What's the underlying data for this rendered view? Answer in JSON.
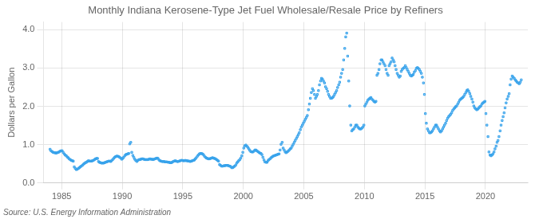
{
  "chart_data": {
    "type": "scatter",
    "title": "Monthly Indiana Kerosene-Type Jet Fuel Wholesale/Resale Price by Refiners",
    "y_label": "Dollars per Gallon",
    "annotations": [
      "Source: U.S. Energy Information Administration"
    ],
    "xlim": [
      1983.5,
      2023.5
    ],
    "ylim": [
      0.0,
      4.2
    ],
    "xticks": [
      1985,
      1990,
      1995,
      2000,
      2005,
      2010,
      2015,
      2020
    ],
    "yticks": [
      {
        "value": 0,
        "label": "0.0"
      },
      {
        "value": 1,
        "label": "1.0"
      },
      {
        "value": 2,
        "label": "2.0"
      },
      {
        "value": 3,
        "label": "3.0"
      },
      {
        "value": 4,
        "label": "4.0"
      }
    ],
    "grid": true,
    "marker": "square",
    "x": [
      1984.04,
      1984.12,
      1984.21,
      1984.29,
      1984.38,
      1984.46,
      1984.54,
      1984.62,
      1984.71,
      1984.79,
      1984.88,
      1984.96,
      1985.04,
      1985.12,
      1985.21,
      1985.29,
      1985.38,
      1985.46,
      1985.54,
      1985.62,
      1985.71,
      1985.79,
      1985.88,
      1985.96,
      1986.04,
      1986.12,
      1986.21,
      1986.29,
      1986.38,
      1986.46,
      1986.54,
      1986.62,
      1986.71,
      1986.79,
      1986.88,
      1986.96,
      1987.04,
      1987.12,
      1987.21,
      1987.29,
      1987.38,
      1987.46,
      1987.54,
      1987.62,
      1987.71,
      1987.79,
      1987.88,
      1987.96,
      1988.04,
      1988.12,
      1988.21,
      1988.29,
      1988.38,
      1988.46,
      1988.54,
      1988.62,
      1988.71,
      1988.79,
      1988.88,
      1988.96,
      1989.04,
      1989.12,
      1989.21,
      1989.29,
      1989.38,
      1989.46,
      1989.54,
      1989.62,
      1989.71,
      1989.79,
      1989.88,
      1989.96,
      1990.04,
      1990.12,
      1990.21,
      1990.29,
      1990.38,
      1990.46,
      1990.54,
      1990.62,
      1990.71,
      1990.79,
      1990.88,
      1990.96,
      1991.04,
      1991.12,
      1991.21,
      1991.29,
      1991.38,
      1991.46,
      1991.54,
      1991.62,
      1991.71,
      1991.79,
      1991.88,
      1991.96,
      1992.04,
      1992.12,
      1992.21,
      1992.29,
      1992.38,
      1992.46,
      1992.54,
      1992.62,
      1992.71,
      1992.79,
      1992.88,
      1992.96,
      1993.04,
      1993.12,
      1993.21,
      1993.29,
      1993.38,
      1993.46,
      1993.54,
      1993.62,
      1993.71,
      1993.79,
      1993.88,
      1993.96,
      1994.04,
      1994.12,
      1994.21,
      1994.29,
      1994.38,
      1994.46,
      1994.54,
      1994.62,
      1994.71,
      1994.79,
      1994.88,
      1994.96,
      1995.04,
      1995.12,
      1995.21,
      1995.29,
      1995.38,
      1995.46,
      1995.54,
      1995.62,
      1995.71,
      1995.79,
      1995.88,
      1995.96,
      1996.04,
      1996.12,
      1996.21,
      1996.29,
      1996.38,
      1996.46,
      1996.54,
      1996.62,
      1996.71,
      1996.79,
      1996.88,
      1996.96,
      1997.04,
      1997.12,
      1997.21,
      1997.29,
      1997.38,
      1997.46,
      1997.54,
      1997.62,
      1997.71,
      1997.79,
      1997.88,
      1997.96,
      1998.04,
      1998.12,
      1998.21,
      1998.29,
      1998.38,
      1998.46,
      1998.54,
      1998.62,
      1998.71,
      1998.79,
      1998.88,
      1998.96,
      1999.04,
      1999.12,
      1999.21,
      1999.29,
      1999.38,
      1999.46,
      1999.54,
      1999.62,
      1999.71,
      1999.79,
      1999.88,
      1999.96,
      2000.04,
      2000.12,
      2000.21,
      2000.29,
      2000.38,
      2000.46,
      2000.54,
      2000.62,
      2000.71,
      2000.79,
      2000.88,
      2000.96,
      2001.04,
      2001.12,
      2001.21,
      2001.29,
      2001.38,
      2001.46,
      2001.54,
      2001.62,
      2001.71,
      2001.79,
      2001.88,
      2001.96,
      2002.04,
      2002.12,
      2002.21,
      2002.29,
      2002.38,
      2002.46,
      2002.54,
      2002.62,
      2002.71,
      2002.79,
      2002.88,
      2002.96,
      2003.04,
      2003.12,
      2003.21,
      2003.29,
      2003.38,
      2003.46,
      2003.54,
      2003.62,
      2003.71,
      2003.79,
      2003.88,
      2003.96,
      2004.04,
      2004.12,
      2004.21,
      2004.29,
      2004.38,
      2004.46,
      2004.54,
      2004.62,
      2004.71,
      2004.79,
      2004.88,
      2004.96,
      2005.04,
      2005.12,
      2005.21,
      2005.29,
      2005.38,
      2005.46,
      2005.54,
      2005.62,
      2005.71,
      2005.79,
      2005.88,
      2005.96,
      2006.04,
      2006.12,
      2006.21,
      2006.29,
      2006.38,
      2006.46,
      2006.54,
      2006.62,
      2006.71,
      2006.79,
      2006.88,
      2006.96,
      2007.04,
      2007.12,
      2007.21,
      2007.29,
      2007.38,
      2007.46,
      2007.54,
      2007.62,
      2007.71,
      2007.79,
      2007.88,
      2007.96,
      2008.04,
      2008.12,
      2008.21,
      2008.29,
      2008.38,
      2008.46,
      2008.54,
      2008.62,
      2008.71,
      2008.79,
      2008.88,
      2008.96,
      2009.04,
      2009.12,
      2009.21,
      2009.29,
      2009.38,
      2009.46,
      2009.54,
      2009.62,
      2009.71,
      2009.79,
      2009.88,
      2009.96,
      2010.04,
      2010.12,
      2010.21,
      2010.29,
      2010.38,
      2010.46,
      2010.54,
      2010.62,
      2010.71,
      2010.79,
      2010.88,
      2010.96,
      2011.04,
      2011.12,
      2011.21,
      2011.29,
      2011.38,
      2011.46,
      2011.54,
      2011.62,
      2011.71,
      2011.79,
      2011.88,
      2011.96,
      2012.04,
      2012.12,
      2012.21,
      2012.29,
      2012.38,
      2012.46,
      2012.54,
      2012.62,
      2012.71,
      2012.79,
      2012.88,
      2012.96,
      2013.04,
      2013.12,
      2013.21,
      2013.29,
      2013.38,
      2013.46,
      2013.54,
      2013.62,
      2013.71,
      2013.79,
      2013.88,
      2013.96,
      2014.04,
      2014.12,
      2014.21,
      2014.29,
      2014.38,
      2014.46,
      2014.54,
      2014.62,
      2014.71,
      2014.79,
      2014.88,
      2014.96,
      2015.04,
      2015.12,
      2015.21,
      2015.29,
      2015.38,
      2015.46,
      2015.54,
      2015.62,
      2015.71,
      2015.79,
      2015.88,
      2015.96,
      2016.04,
      2016.12,
      2016.21,
      2016.29,
      2016.38,
      2016.46,
      2016.54,
      2016.62,
      2016.71,
      2016.79,
      2016.88,
      2016.96,
      2017.04,
      2017.12,
      2017.21,
      2017.29,
      2017.38,
      2017.46,
      2017.54,
      2017.62,
      2017.71,
      2017.79,
      2017.88,
      2017.96,
      2018.04,
      2018.12,
      2018.21,
      2018.29,
      2018.38,
      2018.46,
      2018.54,
      2018.62,
      2018.71,
      2018.79,
      2018.88,
      2018.96,
      2019.04,
      2019.12,
      2019.21,
      2019.29,
      2019.38,
      2019.46,
      2019.54,
      2019.62,
      2019.71,
      2019.79,
      2019.88,
      2019.96,
      2020.04,
      2020.12,
      2020.21,
      2020.29,
      2020.38,
      2020.46,
      2020.54,
      2020.62,
      2020.71,
      2020.79,
      2020.88,
      2020.96,
      2021.04,
      2021.12,
      2021.21,
      2021.29,
      2021.38,
      2021.46,
      2021.54,
      2021.62,
      2021.71,
      2021.79,
      2021.88,
      2021.96,
      2022.04,
      2022.12,
      2022.21,
      2022.29,
      2022.38,
      2022.46,
      2022.54,
      2022.62,
      2022.71,
      2022.79,
      2022.88,
      2022.96
    ],
    "values": [
      0.88,
      0.84,
      0.82,
      0.8,
      0.79,
      0.79,
      0.78,
      0.79,
      0.8,
      0.81,
      0.83,
      0.84,
      0.84,
      0.8,
      0.76,
      0.73,
      0.71,
      0.68,
      0.66,
      0.63,
      0.61,
      0.59,
      0.58,
      0.57,
      0.42,
      0.38,
      0.35,
      0.36,
      0.38,
      0.4,
      0.42,
      0.44,
      0.46,
      0.49,
      0.51,
      0.53,
      0.54,
      0.56,
      0.58,
      0.57,
      0.57,
      0.57,
      0.58,
      0.59,
      0.61,
      0.63,
      0.64,
      0.64,
      0.56,
      0.54,
      0.53,
      0.52,
      0.52,
      0.52,
      0.53,
      0.54,
      0.55,
      0.56,
      0.57,
      0.57,
      0.56,
      0.58,
      0.61,
      0.64,
      0.67,
      0.69,
      0.7,
      0.7,
      0.69,
      0.67,
      0.65,
      0.62,
      0.64,
      0.67,
      0.71,
      0.74,
      0.75,
      0.76,
      0.77,
      1.02,
      1.06,
      0.8,
      0.72,
      0.67,
      0.62,
      0.59,
      0.56,
      0.59,
      0.61,
      0.61,
      0.62,
      0.63,
      0.63,
      0.62,
      0.61,
      0.61,
      0.61,
      0.61,
      0.62,
      0.63,
      0.62,
      0.62,
      0.61,
      0.62,
      0.63,
      0.64,
      0.65,
      0.64,
      0.6,
      0.58,
      0.57,
      0.56,
      0.56,
      0.56,
      0.55,
      0.55,
      0.55,
      0.54,
      0.54,
      0.53,
      0.53,
      0.54,
      0.56,
      0.57,
      0.58,
      0.57,
      0.56,
      0.56,
      0.57,
      0.58,
      0.59,
      0.59,
      0.58,
      0.58,
      0.59,
      0.58,
      0.58,
      0.57,
      0.57,
      0.56,
      0.57,
      0.58,
      0.59,
      0.6,
      0.63,
      0.66,
      0.7,
      0.73,
      0.76,
      0.77,
      0.77,
      0.76,
      0.74,
      0.7,
      0.67,
      0.65,
      0.64,
      0.63,
      0.63,
      0.64,
      0.65,
      0.66,
      0.65,
      0.64,
      0.63,
      0.61,
      0.59,
      0.57,
      0.48,
      0.46,
      0.44,
      0.44,
      0.45,
      0.45,
      0.46,
      0.46,
      0.46,
      0.45,
      0.44,
      0.43,
      0.4,
      0.4,
      0.42,
      0.44,
      0.47,
      0.52,
      0.55,
      0.58,
      0.61,
      0.65,
      0.71,
      0.8,
      0.91,
      0.97,
      0.99,
      0.96,
      0.93,
      0.89,
      0.85,
      0.82,
      0.81,
      0.81,
      0.83,
      0.86,
      0.86,
      0.84,
      0.82,
      0.8,
      0.78,
      0.77,
      0.74,
      0.67,
      0.6,
      0.55,
      0.54,
      0.54,
      0.58,
      0.61,
      0.63,
      0.66,
      0.68,
      0.7,
      0.71,
      0.72,
      0.73,
      0.74,
      0.75,
      0.76,
      0.86,
      1.01,
      1.06,
      0.91,
      0.86,
      0.81,
      0.79,
      0.81,
      0.83,
      0.86,
      0.89,
      0.91,
      0.96,
      1.01,
      1.06,
      1.11,
      1.16,
      1.21,
      1.26,
      1.31,
      1.39,
      1.46,
      1.51,
      1.56,
      1.61,
      1.66,
      1.71,
      1.76,
      1.91,
      2.06,
      2.21,
      2.36,
      2.46,
      2.41,
      2.31,
      2.21,
      2.26,
      2.31,
      2.41,
      2.56,
      2.66,
      2.73,
      2.71,
      2.66,
      2.61,
      2.51,
      2.46,
      2.39,
      2.31,
      2.26,
      2.21,
      2.21,
      2.23,
      2.26,
      2.31,
      2.36,
      2.41,
      2.49,
      2.56,
      2.63,
      2.76,
      2.86,
      2.96,
      3.21,
      3.51,
      3.81,
      3.91,
      3.31,
      2.66,
      2.01,
      1.51,
      1.36,
      1.39,
      1.41,
      1.46,
      1.51,
      1.51,
      1.46,
      1.43,
      1.41,
      1.41,
      1.43,
      1.46,
      1.51,
      2.01,
      2.06,
      2.11,
      2.16,
      2.19,
      2.21,
      2.23,
      2.19,
      2.16,
      2.13,
      2.11,
      2.13,
      2.81,
      2.86,
      2.96,
      3.11,
      3.21,
      3.21,
      3.16,
      3.11,
      3.06,
      2.96,
      2.86,
      2.81,
      3.06,
      3.11,
      3.16,
      3.26,
      3.21,
      3.16,
      3.06,
      2.96,
      2.86,
      2.81,
      2.76,
      2.79,
      2.91,
      2.96,
      2.99,
      3.01,
      3.06,
      3.01,
      2.96,
      2.91,
      2.86,
      2.81,
      2.79,
      2.81,
      2.83,
      2.89,
      2.93,
      2.99,
      3.01,
      2.99,
      2.96,
      2.91,
      2.86,
      2.76,
      2.61,
      2.31,
      1.81,
      1.56,
      1.41,
      1.36,
      1.31,
      1.31,
      1.33,
      1.36,
      1.41,
      1.46,
      1.51,
      1.51,
      1.46,
      1.41,
      1.36,
      1.33,
      1.36,
      1.41,
      1.46,
      1.51,
      1.56,
      1.63,
      1.69,
      1.73,
      1.76,
      1.79,
      1.83,
      1.89,
      1.93,
      1.96,
      1.99,
      2.01,
      2.06,
      2.11,
      2.16,
      2.19,
      2.21,
      2.23,
      2.26,
      2.31,
      2.36,
      2.41,
      2.43,
      2.39,
      2.33,
      2.26,
      2.19,
      2.11,
      2.01,
      1.96,
      1.93,
      1.91,
      1.93,
      1.96,
      1.99,
      2.01,
      2.06,
      2.09,
      2.11,
      2.13,
      1.81,
      1.51,
      1.21,
      0.81,
      0.73,
      0.71,
      0.73,
      0.76,
      0.81,
      0.89,
      0.96,
      1.06,
      1.11,
      1.21,
      1.36,
      1.51,
      1.63,
      1.73,
      1.83,
      1.96,
      2.09,
      2.19,
      2.26,
      2.33,
      2.56,
      2.71,
      2.79,
      2.76,
      2.73,
      2.69,
      2.66,
      2.63,
      2.61,
      2.59,
      2.63,
      2.69
    ]
  }
}
